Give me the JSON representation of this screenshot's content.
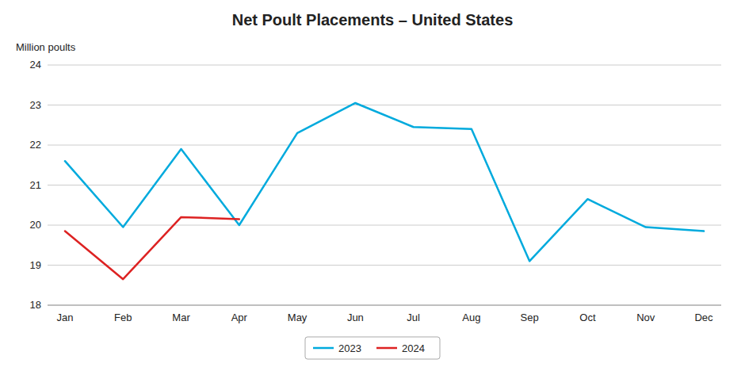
{
  "chart_data": {
    "type": "line",
    "title": "Net Poult Placements – United States",
    "ylabel": "Million poults",
    "categories": [
      "Jan",
      "Feb",
      "Mar",
      "Apr",
      "May",
      "Jun",
      "Jul",
      "Aug",
      "Sep",
      "Oct",
      "Nov",
      "Dec"
    ],
    "series": [
      {
        "name": "2023",
        "color": "#00AADD",
        "values": [
          21.6,
          19.95,
          21.9,
          20.0,
          22.3,
          23.05,
          22.45,
          22.4,
          19.1,
          20.65,
          19.95,
          19.85
        ]
      },
      {
        "name": "2024",
        "color": "#DD2222",
        "values": [
          19.85,
          18.65,
          20.2,
          20.15,
          null,
          null,
          null,
          null,
          null,
          null,
          null,
          null
        ]
      }
    ],
    "ylim": [
      18,
      24
    ],
    "yticks": [
      18,
      19,
      20,
      21,
      22,
      23,
      24
    ],
    "grid": true,
    "legend": "bottom"
  }
}
